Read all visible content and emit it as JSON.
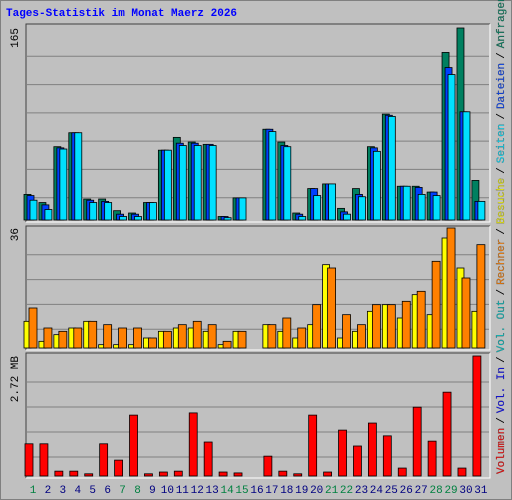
{
  "title": "Tages-Statistik im Monat Maerz 2026",
  "legend_separator": "/",
  "chart_data": [
    {
      "type": "bar",
      "ylim": [
        0,
        165
      ],
      "yticks": [
        165
      ],
      "series": [
        {
          "name": "Anfragen",
          "color": "#008060",
          "values": [
            22,
            15,
            63,
            75,
            18,
            18,
            8,
            6,
            15,
            60,
            71,
            67,
            65,
            3,
            19,
            0,
            78,
            67,
            6,
            27,
            31,
            10,
            27,
            63,
            91,
            29,
            29,
            24,
            144,
            165,
            34
          ]
        },
        {
          "name": "Dateien",
          "color": "#0040ff",
          "values": [
            21,
            13,
            62,
            75,
            17,
            16,
            5,
            5,
            15,
            60,
            66,
            66,
            65,
            3,
            19,
            0,
            78,
            64,
            5,
            27,
            31,
            7,
            22,
            62,
            90,
            29,
            28,
            24,
            131,
            93,
            16
          ]
        },
        {
          "name": "Seiten",
          "color": "#00e0ff",
          "values": [
            17,
            9,
            61,
            75,
            15,
            15,
            3,
            3,
            15,
            60,
            64,
            64,
            64,
            2,
            19,
            0,
            76,
            63,
            3,
            21,
            31,
            5,
            20,
            59,
            89,
            29,
            22,
            21,
            125,
            93,
            16
          ]
        }
      ]
    },
    {
      "type": "bar",
      "ylim": [
        0,
        36
      ],
      "yticks": [
        36
      ],
      "series": [
        {
          "name": "Besuche",
          "color": "#ffff00",
          "values": [
            8,
            2,
            4,
            6,
            8,
            1,
            1,
            1,
            3,
            5,
            6,
            6,
            5,
            1,
            5,
            0,
            7,
            5,
            3,
            7,
            25,
            3,
            5,
            11,
            13,
            9,
            16,
            10,
            33,
            24,
            11
          ]
        },
        {
          "name": "Rechner",
          "color": "#ff8000",
          "values": [
            12,
            6,
            5,
            6,
            8,
            7,
            6,
            6,
            3,
            5,
            7,
            8,
            7,
            2,
            5,
            0,
            7,
            9,
            6,
            13,
            24,
            10,
            7,
            13,
            13,
            14,
            17,
            26,
            36,
            21,
            31
          ]
        }
      ]
    },
    {
      "type": "bar",
      "ylim": [
        0,
        2.72
      ],
      "yticks": [
        {
          "value": 2.72,
          "label": "2.72 MB"
        }
      ],
      "categories": [
        "1",
        "2",
        "3",
        "4",
        "5",
        "6",
        "7",
        "8",
        "9",
        "10",
        "11",
        "12",
        "13",
        "14",
        "15",
        "16",
        "17",
        "18",
        "19",
        "20",
        "21",
        "22",
        "23",
        "24",
        "25",
        "26",
        "27",
        "28",
        "29",
        "30",
        "31"
      ],
      "category_colors": [
        "#008040",
        "#000080",
        "#000080",
        "#000080",
        "#000080",
        "#000080",
        "#008040",
        "#008040",
        "#000080",
        "#000080",
        "#000080",
        "#000080",
        "#000080",
        "#008040",
        "#008040",
        "#000080",
        "#000080",
        "#000080",
        "#000080",
        "#000080",
        "#008040",
        "#008040",
        "#000080",
        "#000080",
        "#000080",
        "#000080",
        "#000080",
        "#008040",
        "#008040",
        "#000080",
        "#000080"
      ],
      "series": [
        {
          "name": "Volumen",
          "color": "#ff0000",
          "values": [
            0.73,
            0.73,
            0.11,
            0.11,
            0.05,
            0.73,
            0.36,
            1.38,
            0.05,
            0.09,
            0.11,
            1.43,
            0.77,
            0.09,
            0.07,
            0,
            0.45,
            0.11,
            0.05,
            1.38,
            0.09,
            1.04,
            0.68,
            1.2,
            0.91,
            0.18,
            1.56,
            0.79,
            1.9,
            0.18,
            2.72
          ]
        }
      ],
      "legend_extra": [
        {
          "name": "Vol. In",
          "color": "#0000ff"
        },
        {
          "name": "Vol. Out",
          "color": "#00c0c0"
        }
      ]
    }
  ]
}
